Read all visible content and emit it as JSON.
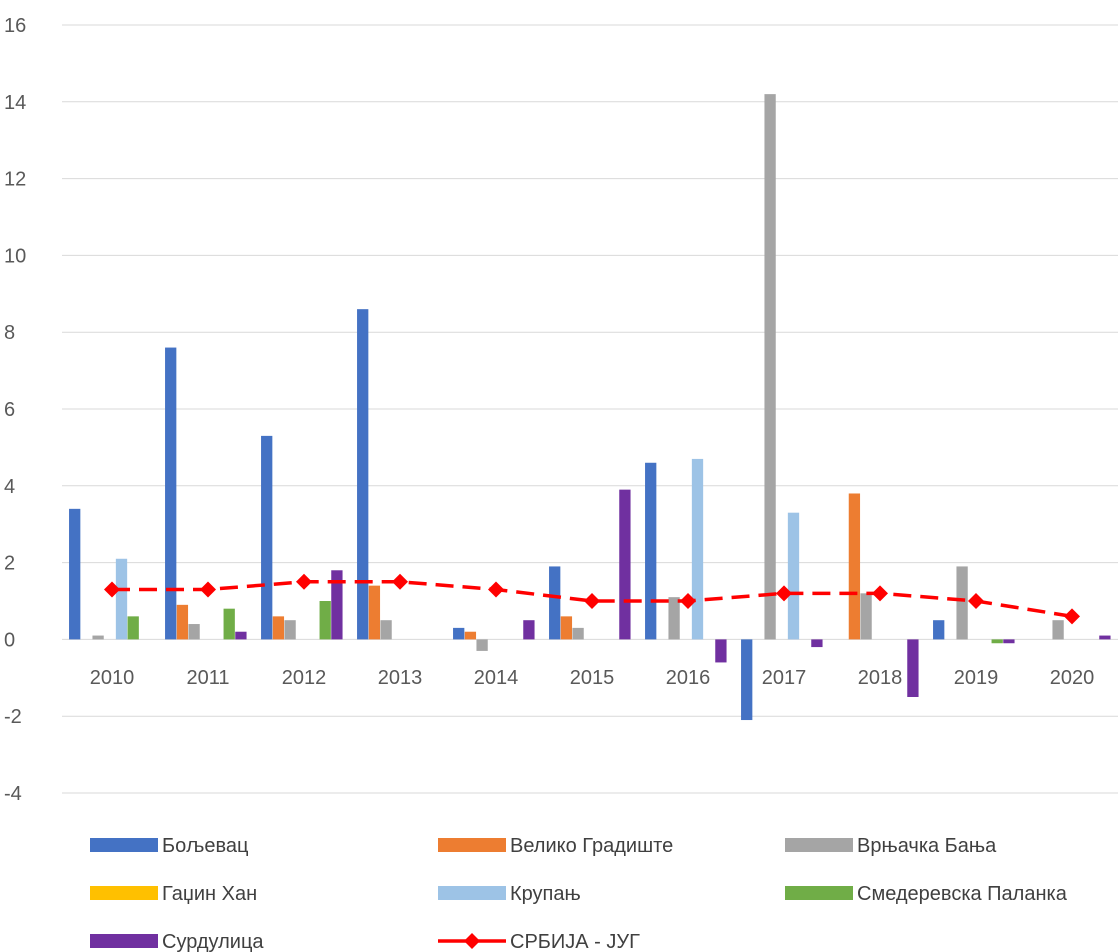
{
  "chart_data": {
    "type": "bar",
    "title": "",
    "xlabel": "",
    "ylabel": "",
    "ylim": [
      -4,
      16
    ],
    "yticks": [
      -4,
      -2,
      0,
      2,
      4,
      6,
      8,
      10,
      12,
      14,
      16
    ],
    "grid": true,
    "legend_position": "bottom",
    "categories": [
      "2010",
      "2011",
      "2012",
      "2013",
      "2014",
      "2015",
      "2016",
      "2017",
      "2018",
      "2019",
      "2020"
    ],
    "series": [
      {
        "name": "Бољевац",
        "type": "bar",
        "color": "#4472C4",
        "values": [
          3.4,
          7.6,
          5.3,
          8.6,
          0.3,
          1.9,
          4.6,
          -2.1,
          null,
          0.5,
          null
        ]
      },
      {
        "name": "Велико Градиште",
        "type": "bar",
        "color": "#ED7D31",
        "values": [
          null,
          0.9,
          0.6,
          1.4,
          0.2,
          0.6,
          null,
          null,
          3.8,
          null,
          null
        ]
      },
      {
        "name": "Врњачка Бања",
        "type": "bar",
        "color": "#A5A5A5",
        "values": [
          0.1,
          0.4,
          0.5,
          0.5,
          -0.3,
          0.3,
          1.1,
          14.2,
          1.2,
          1.9,
          0.5
        ]
      },
      {
        "name": "Гаџин Хан",
        "type": "bar",
        "color": "#FFC000",
        "values": [
          null,
          null,
          null,
          null,
          null,
          null,
          null,
          null,
          null,
          null,
          null
        ]
      },
      {
        "name": "Крупањ",
        "type": "bar",
        "color": "#9DC3E6",
        "values": [
          2.1,
          null,
          null,
          null,
          null,
          null,
          4.7,
          3.3,
          null,
          null,
          null
        ]
      },
      {
        "name": "Смедеревска Паланка",
        "type": "bar",
        "color": "#70AD47",
        "values": [
          0.6,
          0.8,
          1.0,
          null,
          null,
          null,
          null,
          null,
          null,
          -0.1,
          null
        ]
      },
      {
        "name": "Сурдулица",
        "type": "bar",
        "color": "#7030A0",
        "values": [
          null,
          0.2,
          1.8,
          null,
          0.5,
          3.9,
          -0.6,
          -0.2,
          -1.5,
          -0.1,
          0.1
        ]
      },
      {
        "name": "СРБИЈА - ЈУГ",
        "type": "line",
        "color": "#FF0000",
        "values": [
          1.3,
          1.3,
          1.5,
          1.5,
          1.3,
          1.0,
          1.0,
          1.2,
          1.2,
          1.0,
          0.6
        ]
      }
    ]
  }
}
